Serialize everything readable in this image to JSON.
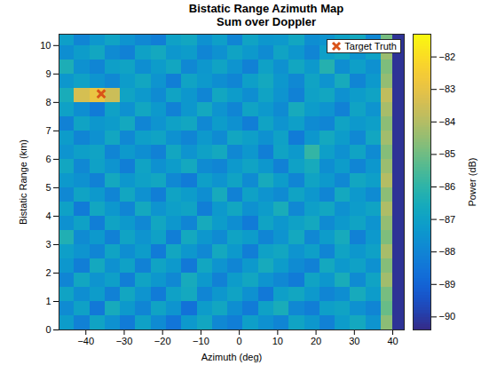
{
  "chart_data": {
    "type": "heatmap",
    "title": "Bistatic Range Azimuth Map",
    "subtitle": "Sum over Doppler",
    "x_label": "Azimuth (deg)",
    "y_label": "Bistatic Range (km)",
    "xlim": [
      -47,
      43
    ],
    "xticks": [
      -40,
      -30,
      -20,
      -10,
      0,
      10,
      20,
      30,
      40
    ],
    "ylim": [
      0,
      10.4
    ],
    "yticks": [
      0,
      1,
      2,
      3,
      4,
      5,
      6,
      7,
      8,
      9,
      10
    ],
    "grid": false,
    "legend": "northeast",
    "heatmap": {
      "x_edges": [
        -47,
        -43,
        -39,
        -35,
        -31,
        -27,
        -23,
        -19,
        -15,
        -11,
        -7,
        -3,
        1,
        5,
        9,
        13,
        17,
        21,
        25,
        29,
        33,
        37,
        40,
        43
      ],
      "y_edges": [
        0,
        0.5,
        1,
        1.5,
        2,
        2.5,
        3,
        3.5,
        4,
        4.5,
        5,
        5.5,
        6,
        6.5,
        7,
        7.5,
        8,
        8.5,
        9,
        9.5,
        10,
        10.4
      ],
      "values": [
        [
          -87.2,
          -88.1,
          -86.9,
          -87.6,
          -88.3,
          -87.0,
          -87.8,
          -88.5,
          -87.3,
          -86.8,
          -87.9,
          -88.2,
          -87.1,
          -87.6,
          -88.0,
          -86.9,
          -87.4,
          -88.1,
          -87.2,
          -86.7,
          -87.5,
          -84.6,
          -90.2
        ],
        [
          -87.8,
          -87.0,
          -88.4,
          -86.6,
          -87.3,
          -88.0,
          -86.9,
          -87.5,
          -88.6,
          -87.2,
          -86.8,
          -87.7,
          -88.3,
          -87.0,
          -86.5,
          -87.9,
          -88.2,
          -87.1,
          -86.9,
          -87.6,
          -88.0,
          -85.1,
          -90.2
        ],
        [
          -86.9,
          -87.7,
          -87.2,
          -88.1,
          -86.8,
          -87.5,
          -88.3,
          -87.0,
          -86.7,
          -88.0,
          -87.4,
          -86.9,
          -87.6,
          -88.4,
          -87.1,
          -86.8,
          -87.3,
          -88.0,
          -87.7,
          -86.6,
          -87.2,
          -84.9,
          -90.2
        ],
        [
          -88.0,
          -86.8,
          -87.5,
          -87.1,
          -88.2,
          -86.9,
          -87.4,
          -87.9,
          -86.6,
          -87.3,
          -88.1,
          -87.2,
          -86.8,
          -87.5,
          -87.9,
          -88.3,
          -86.9,
          -87.4,
          -86.5,
          -87.8,
          -86.9,
          -84.3,
          -90.2
        ],
        [
          -87.4,
          -88.2,
          -86.7,
          -87.6,
          -87.0,
          -88.1,
          -86.9,
          -87.3,
          -88.4,
          -86.8,
          -87.5,
          -88.0,
          -87.3,
          -86.6,
          -87.2,
          -87.8,
          -88.1,
          -86.7,
          -87.3,
          -87.0,
          -87.6,
          -84.7,
          -90.2
        ],
        [
          -87.1,
          -87.5,
          -88.0,
          -86.9,
          -87.7,
          -87.2,
          -88.3,
          -86.8,
          -87.4,
          -87.9,
          -86.7,
          -87.3,
          -88.2,
          -87.0,
          -86.8,
          -87.5,
          -87.1,
          -88.0,
          -86.9,
          -87.4,
          -87.0,
          -84.2,
          -90.2
        ],
        [
          -86.3,
          -87.8,
          -87.3,
          -88.1,
          -86.9,
          -87.5,
          -87.0,
          -88.2,
          -86.7,
          -87.4,
          -87.8,
          -86.9,
          -87.2,
          -88.0,
          -87.5,
          -86.7,
          -87.9,
          -87.2,
          -86.6,
          -88.1,
          -87.3,
          -84.8,
          -90.2
        ],
        [
          -87.6,
          -87.0,
          -88.2,
          -86.9,
          -87.3,
          -87.9,
          -86.8,
          -87.4,
          -88.0,
          -86.6,
          -87.2,
          -87.7,
          -88.3,
          -86.9,
          -87.4,
          -87.0,
          -86.7,
          -87.8,
          -87.3,
          -86.9,
          -87.5,
          -84.5,
          -90.2
        ],
        [
          -87.0,
          -88.3,
          -86.8,
          -87.4,
          -88.0,
          -86.7,
          -87.5,
          -87.1,
          -86.9,
          -88.2,
          -87.3,
          -86.8,
          -87.6,
          -87.2,
          -86.5,
          -87.9,
          -87.1,
          -86.8,
          -87.6,
          -87.2,
          -86.9,
          -84.1,
          -90.2
        ],
        [
          -87.9,
          -86.9,
          -87.3,
          -88.0,
          -86.8,
          -87.6,
          -88.2,
          -86.9,
          -87.2,
          -87.7,
          -86.6,
          -88.1,
          -87.0,
          -87.5,
          -87.8,
          -86.9,
          -87.4,
          -88.0,
          -86.7,
          -87.3,
          -87.8,
          -84.6,
          -90.2
        ],
        [
          -87.3,
          -87.6,
          -88.1,
          -86.7,
          -87.4,
          -87.0,
          -86.8,
          -87.9,
          -88.3,
          -87.1,
          -87.5,
          -86.9,
          -87.8,
          -86.6,
          -87.2,
          -88.0,
          -86.9,
          -87.3,
          -87.9,
          -86.8,
          -87.1,
          -84.0,
          -90.2
        ],
        [
          -86.8,
          -87.9,
          -87.0,
          -87.5,
          -88.2,
          -86.9,
          -87.6,
          -87.2,
          -86.7,
          -87.8,
          -88.0,
          -87.3,
          -86.9,
          -87.4,
          -88.1,
          -87.0,
          -86.6,
          -87.7,
          -87.2,
          -88.0,
          -87.4,
          -84.4,
          -90.2
        ],
        [
          -87.5,
          -87.1,
          -86.9,
          -88.0,
          -87.3,
          -87.7,
          -88.1,
          -86.8,
          -87.5,
          -87.0,
          -86.7,
          -87.9,
          -87.4,
          -88.2,
          -86.9,
          -87.3,
          -85.9,
          -87.1,
          -87.6,
          -86.9,
          -87.8,
          -84.7,
          -90.2
        ],
        [
          -87.2,
          -88.0,
          -87.6,
          -86.8,
          -87.9,
          -87.1,
          -86.9,
          -87.6,
          -88.0,
          -87.3,
          -87.8,
          -86.8,
          -87.1,
          -87.6,
          -87.0,
          -88.3,
          -87.4,
          -86.7,
          -87.2,
          -87.9,
          -86.8,
          -84.3,
          -90.2
        ],
        [
          -88.1,
          -86.9,
          -87.4,
          -87.2,
          -86.7,
          -88.0,
          -87.5,
          -87.0,
          -86.8,
          -87.9,
          -87.2,
          -87.6,
          -88.2,
          -86.9,
          -87.5,
          -87.1,
          -87.8,
          -88.0,
          -86.9,
          -87.3,
          -87.1,
          -84.6,
          -90.2
        ],
        [
          -87.0,
          -87.7,
          -88.3,
          -87.0,
          -87.6,
          -86.8,
          -87.3,
          -88.1,
          -87.4,
          -86.7,
          -87.5,
          -88.0,
          -86.9,
          -87.3,
          -87.8,
          -86.6,
          -87.2,
          -87.5,
          -88.1,
          -86.9,
          -87.5,
          -84.2,
          -90.2
        ],
        [
          -86.5,
          -83.4,
          -82.9,
          -83.6,
          -86.9,
          -87.3,
          -87.8,
          -86.9,
          -87.4,
          -88.0,
          -86.8,
          -87.2,
          -87.7,
          -86.9,
          -87.5,
          -88.1,
          -87.0,
          -86.8,
          -87.6,
          -87.2,
          -86.9,
          -83.8,
          -90.2
        ],
        [
          -87.4,
          -87.0,
          -87.5,
          -87.9,
          -87.2,
          -86.8,
          -87.5,
          -88.2,
          -86.9,
          -87.3,
          -87.7,
          -88.0,
          -87.1,
          -86.7,
          -87.4,
          -87.9,
          -86.9,
          -87.5,
          -86.6,
          -88.0,
          -87.3,
          -84.5,
          -90.2
        ],
        [
          -86.4,
          -87.6,
          -88.0,
          -87.1,
          -86.9,
          -87.7,
          -87.2,
          -86.8,
          -87.9,
          -87.4,
          -86.9,
          -87.5,
          -88.1,
          -87.0,
          -87.6,
          -86.8,
          -87.3,
          -86.2,
          -87.7,
          -87.1,
          -87.6,
          -84.8,
          -90.2
        ],
        [
          -87.7,
          -87.2,
          -86.8,
          -87.8,
          -88.1,
          -87.0,
          -86.7,
          -87.4,
          -87.2,
          -88.0,
          -87.6,
          -86.9,
          -87.3,
          -87.8,
          -86.9,
          -87.4,
          -88.0,
          -87.1,
          -86.8,
          -87.5,
          -87.0,
          -84.4,
          -90.2
        ],
        [
          -87.1,
          -88.0,
          -87.4,
          -86.9,
          -87.5,
          -87.9,
          -88.2,
          -87.0,
          -86.8,
          -87.6,
          -87.1,
          -88.0,
          -86.9,
          -87.4,
          -87.3,
          -86.8,
          -87.7,
          -87.5,
          -87.0,
          -86.7,
          -87.9,
          -84.9,
          -90.2
        ]
      ]
    },
    "colorbar": {
      "lim": [
        -90.4,
        -81.3
      ],
      "ticks": [
        -90,
        -89,
        -88,
        -87,
        -86,
        -85,
        -84,
        -83,
        -82
      ],
      "label": "Power (dB)"
    },
    "series": [
      {
        "name": "Target Truth",
        "type": "scatter",
        "marker": "x",
        "color": "#d95319",
        "x": [
          -36
        ],
        "y": [
          8.3
        ]
      }
    ]
  }
}
